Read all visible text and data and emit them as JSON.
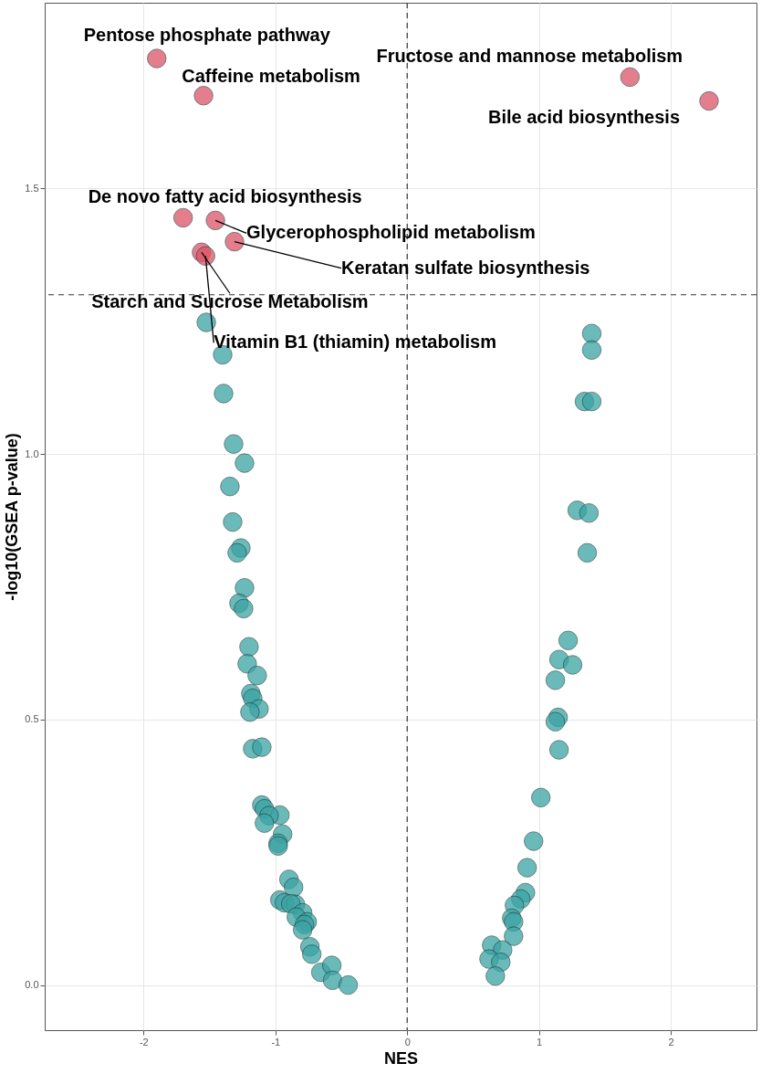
{
  "chart_data": {
    "type": "scatter",
    "xlabel": "NES",
    "ylabel": "-log10(GSEA p-value)",
    "xlim": [
      -2.75,
      2.65
    ],
    "ylim": [
      -0.085,
      1.85
    ],
    "xticks": [
      -2,
      -1,
      0,
      1,
      2
    ],
    "yticks": [
      {
        "value": 0,
        "label": "0.0"
      },
      {
        "value": 0.5,
        "label": "0.5"
      },
      {
        "value": 1,
        "label": "1.0"
      },
      {
        "value": 1.5,
        "label": "1.5"
      }
    ],
    "grid": true,
    "marker": "circle",
    "series": [
      {
        "color": "#3aa3a3",
        "x": [
          -1.524,
          -1.4,
          -1.393,
          -1.317,
          -1.234,
          -1.345,
          -1.324,
          -1.262,
          -1.29,
          -1.234,
          -1.276,
          -1.241,
          -1.2,
          -1.214,
          -1.138,
          -1.186,
          -1.172,
          -1.124,
          -1.193,
          -1.172,
          -1.103,
          -1.103,
          -1.083,
          -0.966,
          -1.048,
          -1.083,
          -0.945,
          -0.979,
          -0.979,
          -0.897,
          -0.862,
          -0.966,
          -0.931,
          -0.848,
          -0.883,
          -0.793,
          -0.841,
          -0.759,
          -0.779,
          -0.793,
          -0.738,
          -0.724,
          -0.655,
          -0.572,
          -0.566,
          -0.448,
          1.4,
          1.4,
          1.345,
          1.4,
          1.29,
          1.379,
          1.366,
          1.221,
          1.152,
          1.255,
          1.124,
          1.145,
          1.124,
          1.152,
          1.014,
          0.959,
          0.91,
          0.897,
          0.862,
          0.814,
          0.793,
          0.807,
          0.807,
          0.641,
          0.724,
          0.621,
          0.71,
          0.669
        ],
        "values": [
          1.248,
          1.187,
          1.114,
          1.019,
          0.983,
          0.939,
          0.872,
          0.823,
          0.814,
          0.748,
          0.719,
          0.709,
          0.637,
          0.605,
          0.583,
          0.549,
          0.54,
          0.52,
          0.514,
          0.445,
          0.448,
          0.339,
          0.332,
          0.32,
          0.319,
          0.305,
          0.284,
          0.267,
          0.262,
          0.199,
          0.184,
          0.16,
          0.155,
          0.152,
          0.153,
          0.136,
          0.128,
          0.119,
          0.114,
          0.104,
          0.072,
          0.058,
          0.024,
          0.037,
          0.009,
          0.0,
          1.227,
          1.196,
          1.099,
          1.099,
          0.894,
          0.889,
          0.814,
          0.649,
          0.613,
          0.603,
          0.574,
          0.504,
          0.496,
          0.443,
          0.353,
          0.271,
          0.221,
          0.174,
          0.162,
          0.15,
          0.126,
          0.119,
          0.092,
          0.075,
          0.066,
          0.049,
          0.043,
          0.017
        ]
      },
      {
        "color": "#dc5468",
        "x": [
          -1.9,
          -1.545,
          1.69,
          2.29,
          -1.7,
          -1.455,
          -1.31,
          -1.56,
          -1.53
        ],
        "values": [
          1.745,
          1.675,
          1.71,
          1.665,
          1.445,
          1.44,
          1.4,
          1.38,
          1.373
        ]
      }
    ],
    "ref_lines": [
      {
        "axis": "x",
        "value": 0,
        "line_style": "dashed"
      },
      {
        "axis": "y",
        "value": 1.3,
        "line_style": "dashed"
      }
    ],
    "annotations": [
      {
        "text": "Pentose phosphate pathway",
        "x": -1.9,
        "y": 1.745
      },
      {
        "text": "Caffeine metabolism",
        "x": -1.545,
        "y": 1.675
      },
      {
        "text": "Fructose and mannose metabolism",
        "x": 1.69,
        "y": 1.71
      },
      {
        "text": "Bile acid biosynthesis",
        "x": 2.29,
        "y": 1.665
      },
      {
        "text": "De novo fatty acid biosynthesis",
        "x": -1.7,
        "y": 1.445
      },
      {
        "text": "Glycerophospholipid metabolism",
        "x": -1.455,
        "y": 1.44
      },
      {
        "text": "Keratan sulfate biosynthesis",
        "x": -1.31,
        "y": 1.4
      },
      {
        "text": "Starch and Sucrose Metabolism",
        "x": -1.56,
        "y": 1.38
      },
      {
        "text": "Vitamin B1 (thiamin) metabolism",
        "x": -1.53,
        "y": 1.373
      }
    ]
  }
}
